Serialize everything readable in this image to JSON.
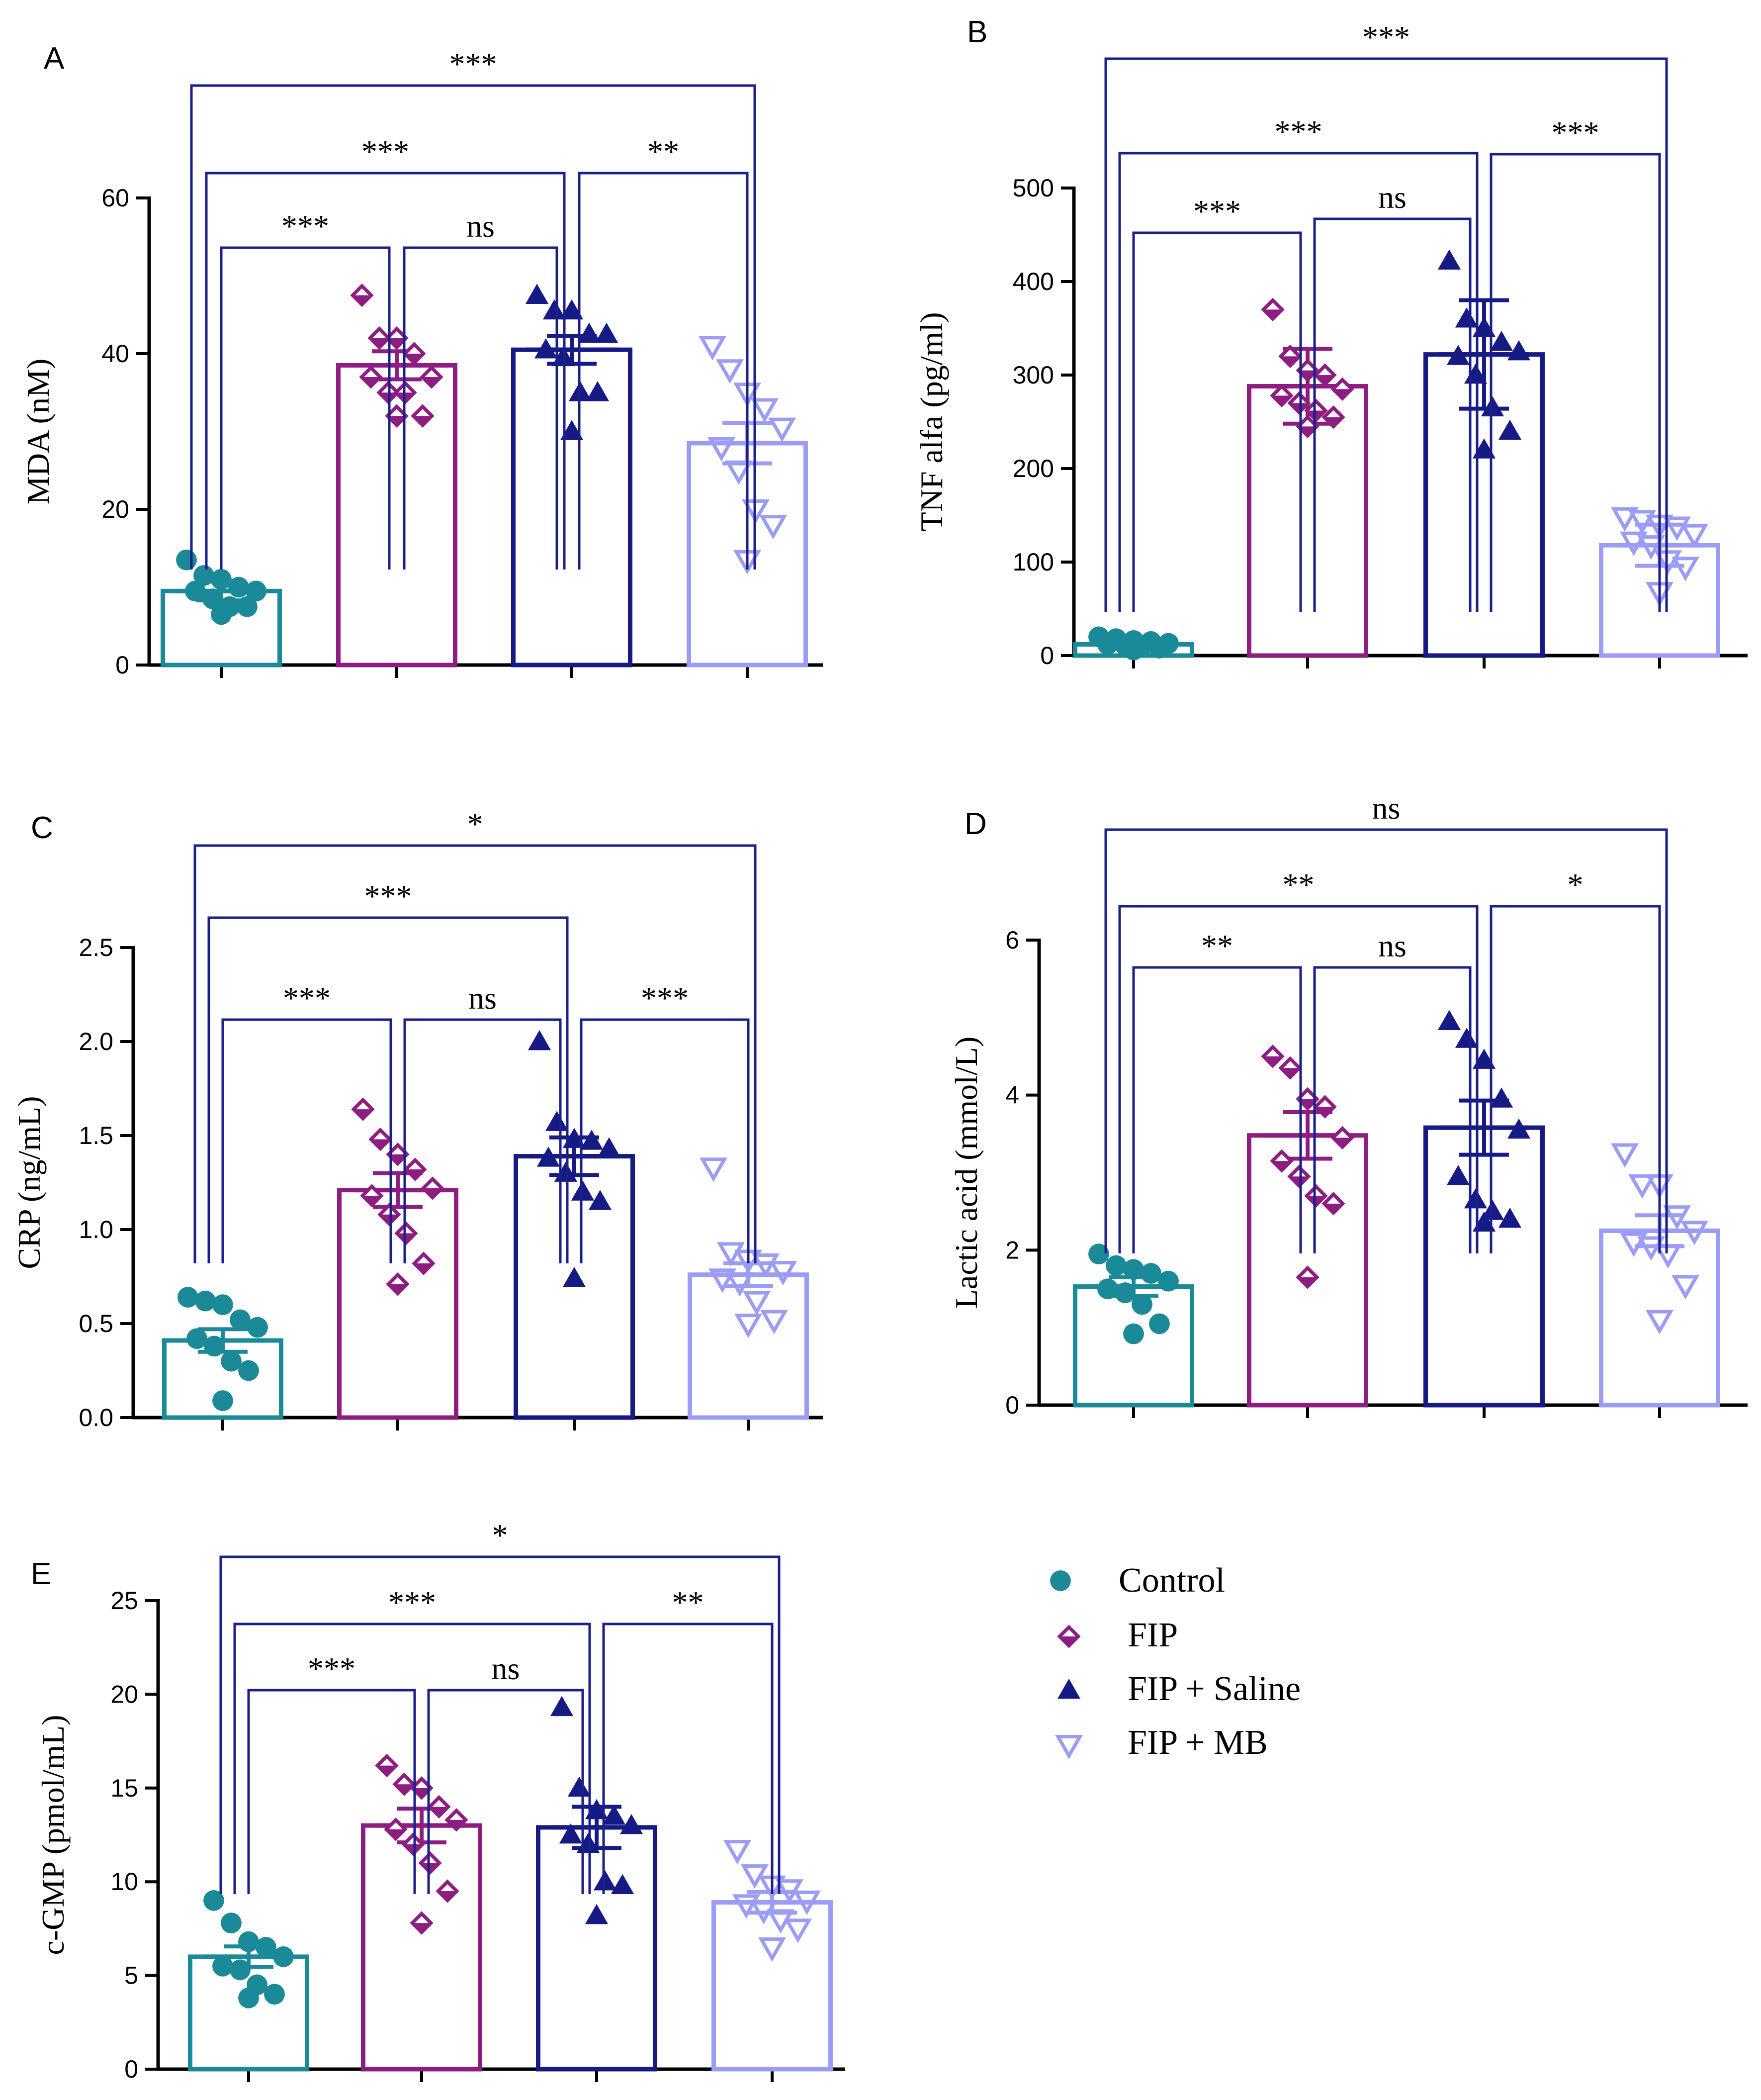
{
  "groups": [
    "Control",
    "FIP",
    "FIP + Saline",
    "FIP + MB"
  ],
  "group_colors": [
    "#1a8a99",
    "#8e1d82",
    "#151a85",
    "#9b9cf5"
  ],
  "group_markers": [
    "circle",
    "diamond-open",
    "triangle-filled",
    "triangle-down-open"
  ],
  "chart_data": [
    {
      "panel": "A",
      "type": "bar",
      "ylabel": "MDA (nM)",
      "ylim": [
        0,
        60
      ],
      "yticks": [
        "0",
        "20",
        "40",
        "60"
      ],
      "ytick_values": [
        0,
        20,
        40,
        60
      ],
      "categories": [
        "Control",
        "FIP",
        "FIP + Saline",
        "FIP + MB"
      ],
      "means": [
        9.5,
        38.5,
        40.5,
        28.5
      ],
      "sem": [
        1.2,
        1.8,
        1.8,
        2.6
      ],
      "points": [
        [
          13.5,
          11.5,
          11,
          10,
          9.5,
          9.5,
          8.5,
          7.5,
          7.5,
          6.5
        ],
        [
          47.5,
          42,
          42,
          40,
          37,
          37,
          35,
          35,
          32,
          32
        ],
        [
          47.5,
          45.5,
          45.5,
          42.5,
          42.5,
          40.5,
          39.5,
          35,
          35,
          30
        ],
        [
          41,
          38,
          35,
          33,
          30.5,
          28,
          25,
          20,
          18,
          13.5
        ]
      ],
      "comparisons": [
        {
          "from": 0,
          "to": 3,
          "label": "***"
        },
        {
          "from": 0,
          "to": 2,
          "label": "***"
        },
        {
          "from": 0,
          "to": 1,
          "label": "***"
        },
        {
          "from": 1,
          "to": 2,
          "label": "ns"
        },
        {
          "from": 2,
          "to": 3,
          "label": "**"
        }
      ]
    },
    {
      "panel": "B",
      "type": "bar",
      "ylabel": "TNF alfa (pg/ml)",
      "ylim": [
        0,
        500
      ],
      "yticks": [
        "0",
        "100",
        "200",
        "300",
        "400",
        "500"
      ],
      "ytick_values": [
        0,
        100,
        200,
        300,
        400,
        500
      ],
      "categories": [
        "Control",
        "FIP",
        "FIP + Saline",
        "FIP + MB"
      ],
      "means": [
        12,
        288,
        322,
        118
      ],
      "sem": [
        3,
        40,
        58,
        22
      ],
      "points": [
        [
          20,
          18,
          16,
          15,
          13,
          12,
          11,
          10,
          8,
          6
        ],
        [
          370,
          320,
          305,
          300,
          285,
          278,
          270,
          262,
          255,
          245
        ],
        [
          422,
          360,
          350,
          335,
          325,
          320,
          300,
          265,
          240,
          220
        ],
        [
          148,
          145,
          140,
          138,
          130,
          122,
          118,
          102,
          95,
          68
        ]
      ],
      "comparisons": [
        {
          "from": 0,
          "to": 3,
          "label": "***"
        },
        {
          "from": 0,
          "to": 2,
          "label": "***"
        },
        {
          "from": 0,
          "to": 1,
          "label": "***"
        },
        {
          "from": 1,
          "to": 2,
          "label": "ns"
        },
        {
          "from": 2,
          "to": 3,
          "label": "***"
        }
      ]
    },
    {
      "panel": "C",
      "type": "bar",
      "ylabel": "CRP (ng/mL)",
      "ylim": [
        0,
        2.5
      ],
      "yticks": [
        "0.0",
        "0.5",
        "1.0",
        "1.5",
        "2.0",
        "2.5"
      ],
      "ytick_values": [
        0,
        0.5,
        1,
        1.5,
        2,
        2.5
      ],
      "categories": [
        "Control",
        "FIP",
        "FIP + Saline",
        "FIP + MB"
      ],
      "means": [
        0.41,
        1.21,
        1.39,
        0.76
      ],
      "sem": [
        0.06,
        0.09,
        0.1,
        0.06
      ],
      "points": [
        [
          0.64,
          0.62,
          0.6,
          0.52,
          0.48,
          0.42,
          0.38,
          0.3,
          0.25,
          0.09
        ],
        [
          1.64,
          1.48,
          1.4,
          1.32,
          1.22,
          1.18,
          1.08,
          0.98,
          0.82,
          0.71
        ],
        [
          2.0,
          1.57,
          1.48,
          1.47,
          1.43,
          1.38,
          1.3,
          1.2,
          1.15,
          0.74
        ],
        [
          1.33,
          0.88,
          0.84,
          0.82,
          0.78,
          0.74,
          0.72,
          0.62,
          0.52,
          0.5
        ]
      ],
      "comparisons": [
        {
          "from": 0,
          "to": 3,
          "label": "*"
        },
        {
          "from": 0,
          "to": 2,
          "label": "***"
        },
        {
          "from": 0,
          "to": 1,
          "label": "***"
        },
        {
          "from": 1,
          "to": 2,
          "label": "ns"
        },
        {
          "from": 2,
          "to": 3,
          "label": "***"
        }
      ]
    },
    {
      "panel": "D",
      "type": "bar",
      "ylabel": "Lactic acid (mmol/L)",
      "ylim": [
        0,
        6
      ],
      "yticks": [
        "0",
        "2",
        "4",
        "6"
      ],
      "ytick_values": [
        0,
        2,
        4,
        6
      ],
      "categories": [
        "Control",
        "FIP",
        "FIP + Saline",
        "FIP + MB"
      ],
      "means": [
        1.53,
        3.48,
        3.58,
        2.25
      ],
      "sem": [
        0.12,
        0.3,
        0.35,
        0.2
      ],
      "points": [
        [
          1.95,
          1.8,
          1.75,
          1.7,
          1.6,
          1.5,
          1.45,
          1.3,
          1.05,
          0.92
        ],
        [
          4.5,
          4.35,
          3.95,
          3.85,
          3.45,
          3.15,
          2.95,
          2.7,
          2.6,
          1.65
        ],
        [
          4.95,
          4.72,
          4.45,
          3.95,
          3.55,
          2.95,
          2.65,
          2.5,
          2.4,
          2.35
        ],
        [
          3.25,
          2.85,
          2.85,
          2.45,
          2.25,
          2.1,
          2.05,
          1.95,
          1.55,
          1.1
        ]
      ],
      "comparisons": [
        {
          "from": 0,
          "to": 3,
          "label": "ns"
        },
        {
          "from": 0,
          "to": 2,
          "label": "**"
        },
        {
          "from": 0,
          "to": 1,
          "label": "**"
        },
        {
          "from": 1,
          "to": 2,
          "label": "ns"
        },
        {
          "from": 2,
          "to": 3,
          "label": "*"
        }
      ]
    },
    {
      "panel": "E",
      "type": "bar",
      "ylabel": "c-GMP (pmol/mL)",
      "ylim": [
        0,
        25
      ],
      "yticks": [
        "0",
        "5",
        "10",
        "15",
        "20",
        "25"
      ],
      "ytick_values": [
        0,
        5,
        10,
        15,
        20,
        25
      ],
      "categories": [
        "Control",
        "FIP",
        "FIP + Saline",
        "FIP + MB"
      ],
      "means": [
        6.0,
        13.0,
        12.9,
        8.9
      ],
      "sem": [
        0.55,
        0.9,
        1.1,
        0.55
      ],
      "points": [
        [
          9.0,
          7.8,
          6.8,
          6.5,
          6.0,
          5.5,
          5.3,
          4.5,
          4.0,
          3.8
        ],
        [
          16.2,
          15.2,
          15.0,
          14.0,
          13.3,
          12.8,
          12.0,
          11.0,
          9.5,
          7.8
        ],
        [
          19.3,
          15.0,
          13.8,
          13.5,
          13.0,
          12.5,
          12.0,
          10.0,
          9.8,
          8.2
        ],
        [
          11.7,
          10.4,
          9.8,
          9.6,
          9.0,
          8.8,
          8.5,
          8.0,
          7.5,
          6.5
        ]
      ],
      "comparisons": [
        {
          "from": 0,
          "to": 3,
          "label": "*"
        },
        {
          "from": 0,
          "to": 2,
          "label": "***"
        },
        {
          "from": 0,
          "to": 1,
          "label": "***"
        },
        {
          "from": 1,
          "to": 2,
          "label": "ns"
        },
        {
          "from": 2,
          "to": 3,
          "label": "**"
        }
      ]
    }
  ]
}
